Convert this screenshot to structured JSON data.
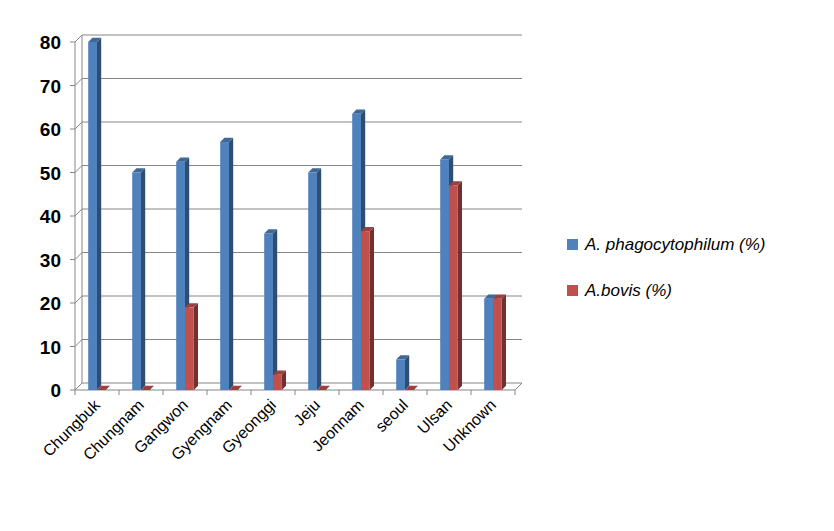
{
  "chart_data": {
    "type": "bar",
    "categories": [
      "Chungbuk",
      "Chungnam",
      "Gangwon",
      "Gyengnam",
      "Gyeonggi",
      "Jeju",
      "Jeonnam",
      "seoul",
      "Ulsan",
      "Unknown"
    ],
    "series": [
      {
        "name": "A. phagocytophilum (%)",
        "color": "#4f81bd",
        "values": [
          80,
          50,
          52.5,
          57,
          36,
          50,
          63.5,
          7,
          53,
          21
        ]
      },
      {
        "name": "A.bovis (%)",
        "color": "#c0504d",
        "values": [
          0,
          0,
          19,
          0,
          3.5,
          0,
          36.5,
          0,
          47,
          21
        ]
      }
    ],
    "ylim": [
      0,
      80
    ],
    "yticks": [
      0,
      10,
      20,
      30,
      40,
      50,
      60,
      70,
      80
    ],
    "grid": true,
    "legend": "right"
  }
}
